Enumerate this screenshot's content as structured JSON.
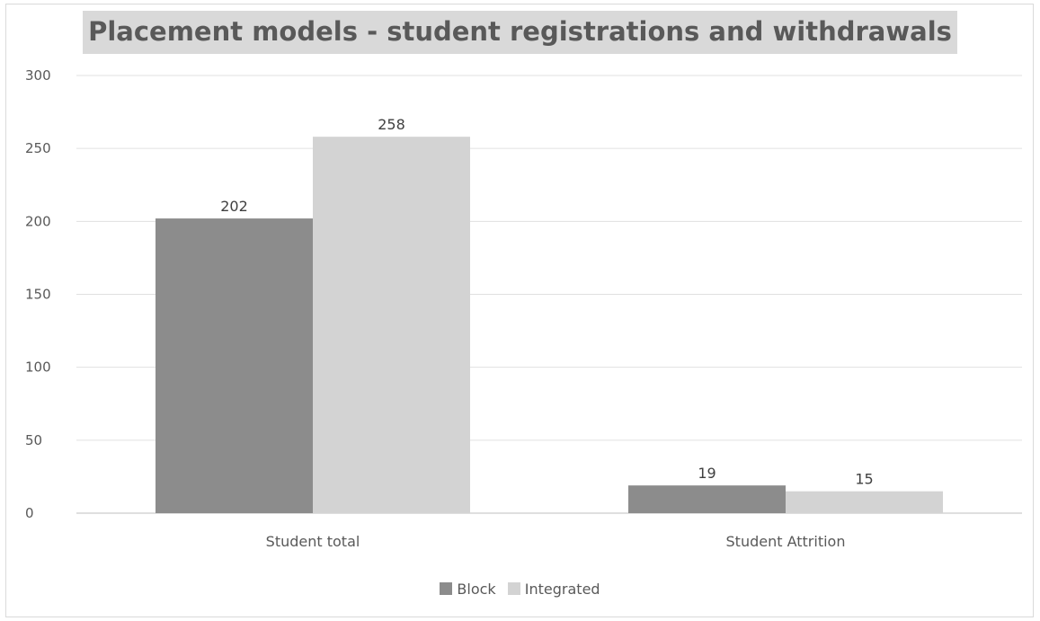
{
  "chart_data": {
    "type": "bar",
    "title": "Placement models - student registrations and withdrawals",
    "categories": [
      "Student total",
      "Student Attrition"
    ],
    "series": [
      {
        "name": "Block",
        "values": [
          202,
          19
        ],
        "color": "#8c8c8c"
      },
      {
        "name": "Integrated",
        "values": [
          258,
          15
        ],
        "color": "#d3d3d3"
      }
    ],
    "ylim": [
      0,
      300
    ],
    "yticks": [
      0,
      50,
      100,
      150,
      200,
      250,
      300
    ],
    "grid": true,
    "legend_position": "bottom"
  }
}
